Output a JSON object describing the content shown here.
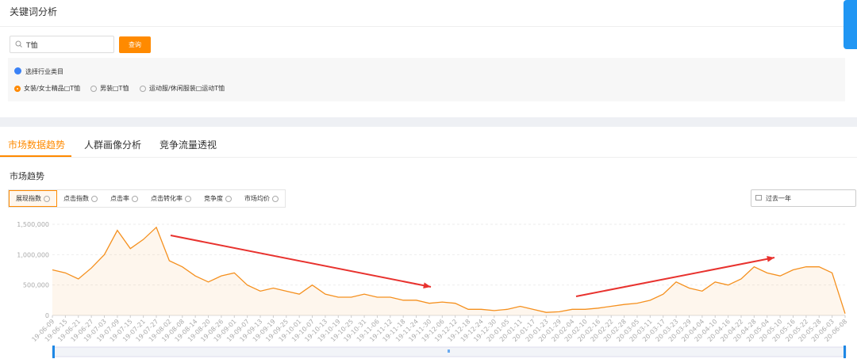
{
  "header": {
    "title": "关键词分析"
  },
  "search": {
    "query": "T恤",
    "button": "查询"
  },
  "category_filter": {
    "label": "选择行业类目",
    "options": [
      "女装/女士精品□T恤",
      "男装□T恤",
      "运动服/休闲服装□运动T恤"
    ],
    "selected": 0
  },
  "tabs": {
    "items": [
      "市场数据趋势",
      "人群画像分析",
      "竞争流量透视"
    ],
    "active": 0
  },
  "section_title": "市场趋势",
  "metrics": {
    "items": [
      "展现指数",
      "点击指数",
      "点击率",
      "点击转化率",
      "竞争度",
      "市场均价"
    ],
    "active": 0
  },
  "date_range": "过去一年",
  "chart_data": {
    "type": "line",
    "color": "#f5901e",
    "grid": true,
    "categories": [
      "19-06-09",
      "19-06-15",
      "19-06-21",
      "19-06-27",
      "19-07-03",
      "19-07-09",
      "19-07-15",
      "19-07-21",
      "19-07-27",
      "19-08-02",
      "19-08-08",
      "19-08-14",
      "19-08-20",
      "19-08-26",
      "19-09-01",
      "19-09-07",
      "19-09-13",
      "19-09-19",
      "19-09-25",
      "19-10-01",
      "19-10-07",
      "19-10-13",
      "19-10-19",
      "19-10-25",
      "19-10-31",
      "19-11-06",
      "19-11-12",
      "19-11-18",
      "19-11-24",
      "19-11-30",
      "19-12-06",
      "19-12-12",
      "19-12-18",
      "19-12-24",
      "19-12-30",
      "20-01-05",
      "20-01-11",
      "20-01-17",
      "20-01-23",
      "20-01-29",
      "20-02-04",
      "20-02-10",
      "20-02-16",
      "20-02-22",
      "20-02-28",
      "20-03-05",
      "20-03-11",
      "20-03-17",
      "20-03-23",
      "20-03-29",
      "20-04-04",
      "20-04-10",
      "20-04-16",
      "20-04-22",
      "20-04-28",
      "20-05-04",
      "20-05-10",
      "20-05-16",
      "20-05-22",
      "20-05-28",
      "20-06-03",
      "20-06-08"
    ],
    "values": [
      750000,
      700000,
      600000,
      780000,
      1000000,
      1400000,
      1100000,
      1250000,
      1450000,
      900000,
      800000,
      650000,
      550000,
      650000,
      700000,
      500000,
      400000,
      450000,
      400000,
      350000,
      500000,
      350000,
      300000,
      300000,
      350000,
      300000,
      300000,
      250000,
      250000,
      200000,
      220000,
      200000,
      100000,
      100000,
      80000,
      100000,
      150000,
      100000,
      50000,
      60000,
      100000,
      100000,
      120000,
      150000,
      180000,
      200000,
      250000,
      350000,
      550000,
      450000,
      400000,
      550000,
      500000,
      600000,
      800000,
      700000,
      650000,
      750000,
      800000,
      800000,
      700000,
      30000
    ],
    "ylim": [
      0,
      1500000
    ],
    "yticks": [
      0,
      {
        "value": 500000,
        "label": "500,000"
      },
      {
        "value": 1000000,
        "label": "1,000,000"
      },
      {
        "value": 1500000,
        "label": "1,500,000"
      }
    ]
  }
}
